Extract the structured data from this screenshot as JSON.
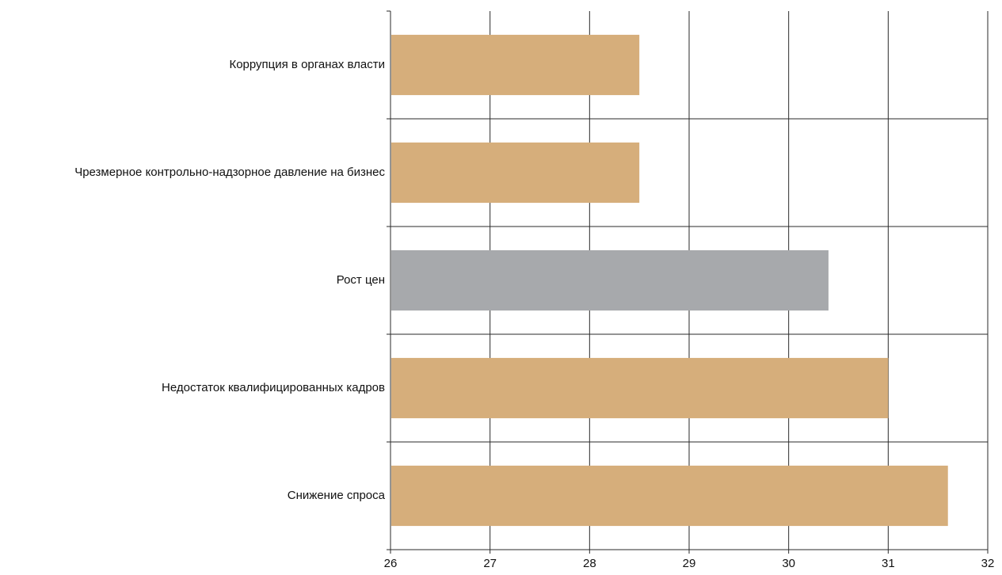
{
  "chart_data": {
    "type": "bar",
    "orientation": "horizontal",
    "categories": [
      "Коррупция в органах власти",
      "Чрезмерное контрольно-надзорное давление на бизнес",
      "Рост цен",
      "Недостаток квалифицированных кадров",
      "Снижение спроса"
    ],
    "values": [
      28.5,
      28.5,
      30.4,
      31.0,
      31.6
    ],
    "bar_colors": [
      "#d6ae7b",
      "#d6ae7b",
      "#a7a9ac",
      "#d6ae7b",
      "#d6ae7b"
    ],
    "xlim": [
      26,
      32
    ],
    "xticks": [
      "26",
      "27",
      "28",
      "29",
      "30",
      "31",
      "32"
    ],
    "title": "",
    "xlabel": "",
    "ylabel": "",
    "grid": true,
    "legend": "none"
  }
}
